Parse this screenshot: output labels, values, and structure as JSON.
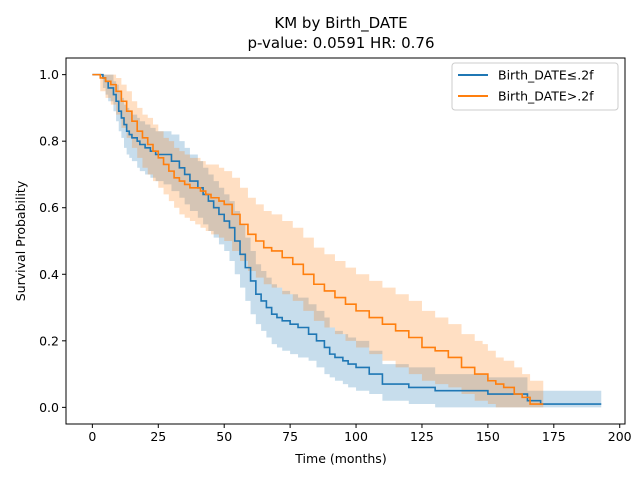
{
  "chart_data": {
    "type": "line",
    "title_line1": "KM by Birth_DATE",
    "title_line2": "p-value: 0.0591  HR: 0.76",
    "xlabel": "Time (months)",
    "ylabel": "Survival Probability",
    "xlim": [
      -10,
      202
    ],
    "ylim": [
      -0.05,
      1.05
    ],
    "xticks": [
      0,
      25,
      50,
      75,
      100,
      125,
      150,
      175,
      200
    ],
    "yticks": [
      0.0,
      0.2,
      0.4,
      0.6,
      0.8,
      1.0
    ],
    "xtick_labels": [
      "0",
      "25",
      "50",
      "75",
      "100",
      "125",
      "150",
      "175",
      "200"
    ],
    "ytick_labels": [
      "0.0",
      "0.2",
      "0.4",
      "0.6",
      "0.8",
      "1.0"
    ],
    "grid": false,
    "legend_position": "top-right",
    "legend": [
      "Birth_DATE≤.2f",
      "Birth_DATE>.2f"
    ],
    "series": [
      {
        "name": "Birth_DATE≤.2f",
        "color": "#1f77b4",
        "x": [
          0,
          4,
          5,
          6,
          8,
          9,
          10,
          11,
          12,
          13,
          14,
          15,
          17,
          18,
          20,
          22,
          24,
          27,
          30,
          33,
          35,
          37,
          40,
          42,
          44,
          46,
          48,
          50,
          52,
          54,
          56,
          58,
          60,
          62,
          64,
          66,
          68,
          70,
          72,
          75,
          78,
          82,
          85,
          88,
          90,
          92,
          95,
          97,
          100,
          105,
          110,
          120,
          130,
          150,
          165,
          170,
          175,
          180,
          193
        ],
        "y": [
          1.0,
          0.99,
          0.98,
          0.96,
          0.94,
          0.92,
          0.89,
          0.87,
          0.85,
          0.83,
          0.82,
          0.81,
          0.8,
          0.79,
          0.78,
          0.77,
          0.76,
          0.76,
          0.74,
          0.72,
          0.7,
          0.68,
          0.66,
          0.64,
          0.62,
          0.6,
          0.58,
          0.56,
          0.54,
          0.5,
          0.46,
          0.42,
          0.38,
          0.34,
          0.32,
          0.3,
          0.28,
          0.27,
          0.26,
          0.25,
          0.24,
          0.22,
          0.2,
          0.18,
          0.16,
          0.15,
          0.14,
          0.13,
          0.12,
          0.1,
          0.07,
          0.06,
          0.05,
          0.04,
          0.02,
          0.01,
          0.01,
          0.01,
          0.01
        ],
        "ci_lower": [
          1.0,
          0.96,
          0.94,
          0.92,
          0.89,
          0.86,
          0.83,
          0.81,
          0.78,
          0.76,
          0.75,
          0.74,
          0.72,
          0.71,
          0.7,
          0.69,
          0.68,
          0.67,
          0.65,
          0.63,
          0.61,
          0.59,
          0.57,
          0.55,
          0.53,
          0.51,
          0.49,
          0.47,
          0.44,
          0.4,
          0.36,
          0.32,
          0.28,
          0.25,
          0.23,
          0.21,
          0.19,
          0.18,
          0.17,
          0.16,
          0.15,
          0.14,
          0.12,
          0.1,
          0.09,
          0.08,
          0.07,
          0.06,
          0.05,
          0.04,
          0.02,
          0.01,
          0.0,
          0.0,
          0.0,
          0.0,
          0.0,
          0.0,
          0.0
        ],
        "ci_upper": [
          1.0,
          1.0,
          1.0,
          1.0,
          0.98,
          0.97,
          0.95,
          0.93,
          0.91,
          0.9,
          0.89,
          0.88,
          0.87,
          0.86,
          0.85,
          0.84,
          0.83,
          0.83,
          0.82,
          0.8,
          0.78,
          0.76,
          0.74,
          0.72,
          0.7,
          0.68,
          0.66,
          0.64,
          0.62,
          0.59,
          0.55,
          0.51,
          0.47,
          0.43,
          0.41,
          0.39,
          0.37,
          0.36,
          0.35,
          0.34,
          0.33,
          0.31,
          0.29,
          0.27,
          0.24,
          0.23,
          0.22,
          0.21,
          0.2,
          0.17,
          0.13,
          0.12,
          0.1,
          0.09,
          0.05,
          0.05,
          0.05,
          0.05,
          0.05
        ]
      },
      {
        "name": "Birth_DATE>.2f",
        "color": "#ff7f0e",
        "x": [
          0,
          3,
          5,
          7,
          9,
          11,
          13,
          15,
          17,
          19,
          21,
          23,
          25,
          27,
          29,
          31,
          33,
          35,
          37,
          39,
          41,
          43,
          45,
          48,
          50,
          53,
          56,
          59,
          62,
          65,
          68,
          72,
          76,
          80,
          84,
          88,
          92,
          96,
          100,
          105,
          110,
          115,
          120,
          125,
          130,
          135,
          140,
          145,
          148,
          150,
          153,
          156,
          160,
          163,
          166,
          171
        ],
        "y": [
          1.0,
          0.99,
          0.98,
          0.97,
          0.95,
          0.92,
          0.89,
          0.86,
          0.83,
          0.81,
          0.79,
          0.77,
          0.75,
          0.73,
          0.71,
          0.69,
          0.68,
          0.67,
          0.66,
          0.66,
          0.65,
          0.64,
          0.63,
          0.62,
          0.61,
          0.58,
          0.55,
          0.52,
          0.5,
          0.48,
          0.47,
          0.45,
          0.43,
          0.4,
          0.37,
          0.35,
          0.33,
          0.31,
          0.29,
          0.27,
          0.25,
          0.23,
          0.21,
          0.18,
          0.17,
          0.15,
          0.12,
          0.1,
          0.1,
          0.08,
          0.07,
          0.06,
          0.04,
          0.03,
          0.01,
          0.01
        ],
        "ci_lower": [
          1.0,
          0.95,
          0.93,
          0.91,
          0.88,
          0.84,
          0.81,
          0.78,
          0.75,
          0.72,
          0.7,
          0.68,
          0.66,
          0.64,
          0.62,
          0.6,
          0.58,
          0.57,
          0.56,
          0.55,
          0.54,
          0.53,
          0.52,
          0.51,
          0.5,
          0.47,
          0.44,
          0.41,
          0.39,
          0.37,
          0.36,
          0.34,
          0.32,
          0.29,
          0.26,
          0.24,
          0.22,
          0.2,
          0.18,
          0.16,
          0.14,
          0.12,
          0.1,
          0.08,
          0.07,
          0.06,
          0.04,
          0.02,
          0.02,
          0.01,
          0.0,
          0.0,
          0.0,
          0.0,
          0.0,
          0.0
        ],
        "ci_upper": [
          1.0,
          1.0,
          1.0,
          1.0,
          0.99,
          0.97,
          0.95,
          0.92,
          0.9,
          0.88,
          0.87,
          0.85,
          0.83,
          0.81,
          0.8,
          0.78,
          0.77,
          0.76,
          0.75,
          0.75,
          0.74,
          0.73,
          0.73,
          0.72,
          0.71,
          0.69,
          0.66,
          0.63,
          0.61,
          0.59,
          0.58,
          0.56,
          0.54,
          0.51,
          0.48,
          0.46,
          0.44,
          0.42,
          0.4,
          0.38,
          0.36,
          0.34,
          0.32,
          0.29,
          0.27,
          0.25,
          0.22,
          0.2,
          0.19,
          0.17,
          0.15,
          0.14,
          0.12,
          0.1,
          0.08,
          0.07
        ]
      }
    ]
  }
}
